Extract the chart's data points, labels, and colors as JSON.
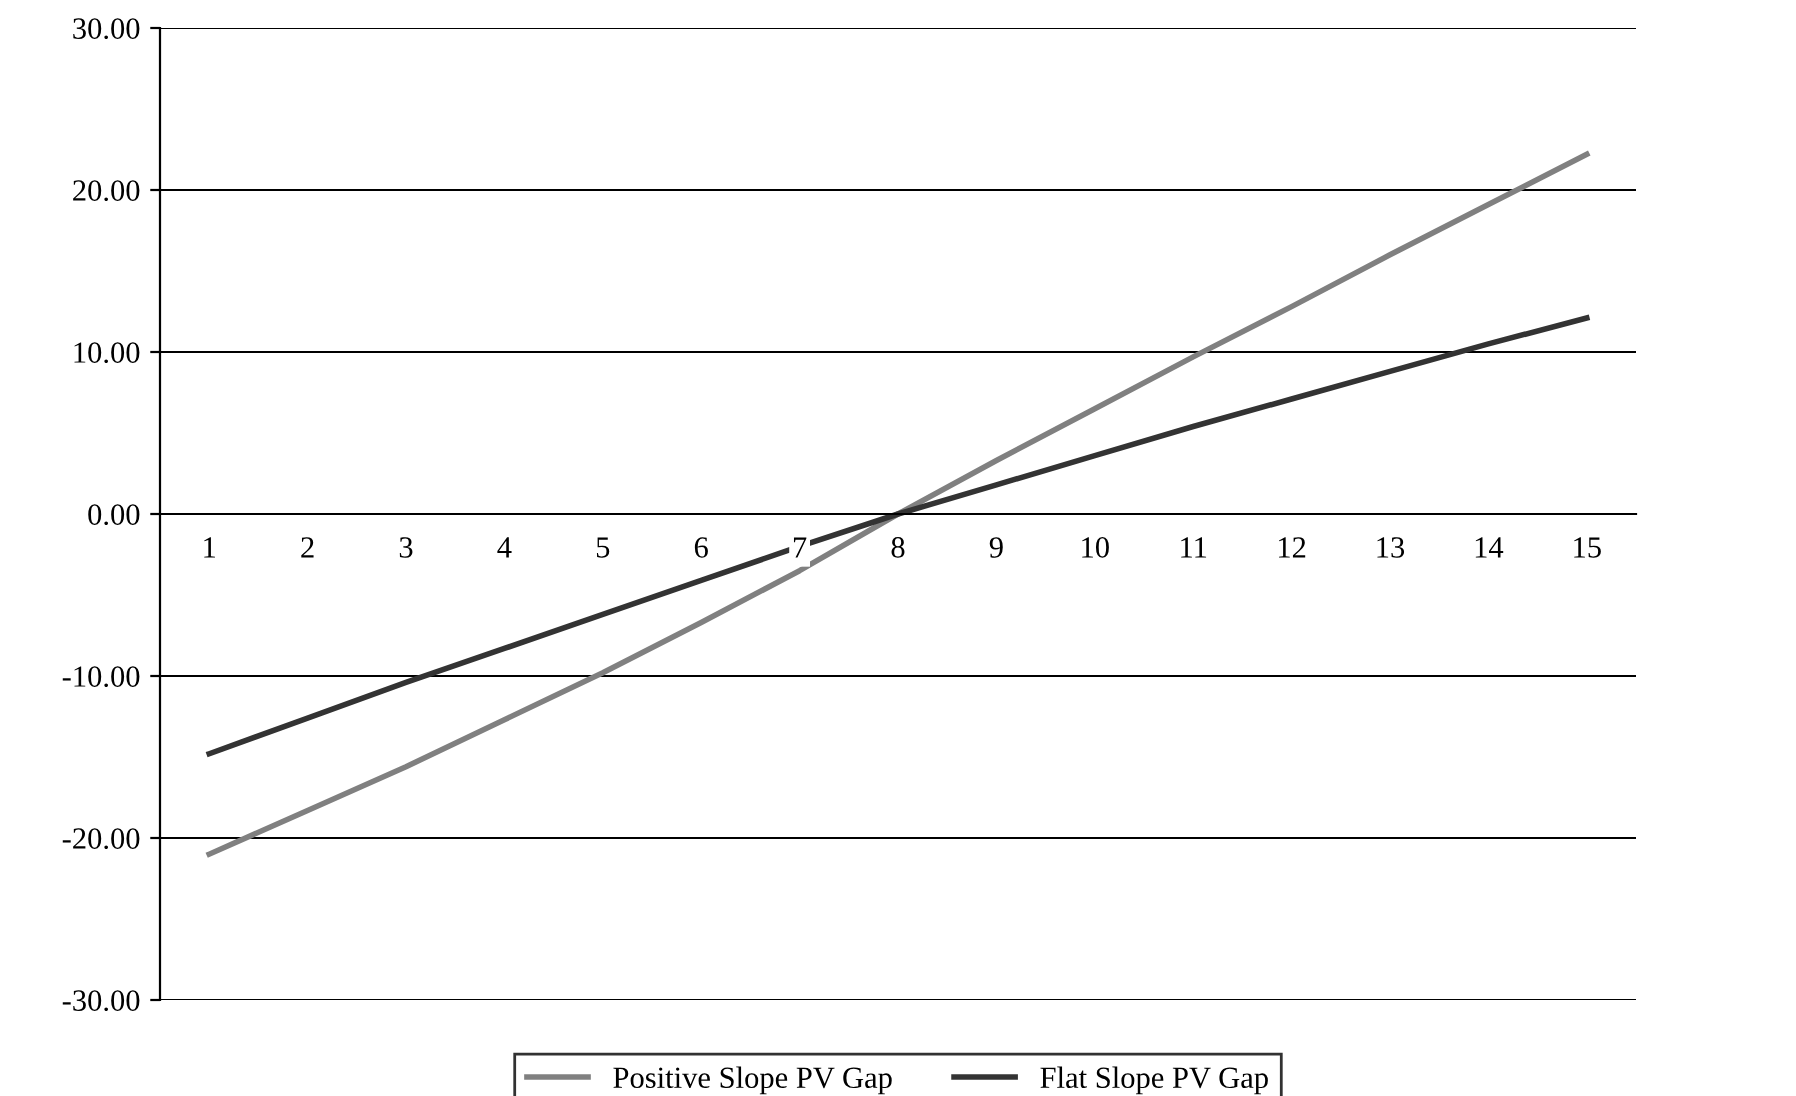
{
  "chart_data": {
    "type": "line",
    "categories": [
      "1",
      "2",
      "3",
      "4",
      "5",
      "6",
      "7",
      "8",
      "9",
      "10",
      "11",
      "12",
      "13",
      "14",
      "15"
    ],
    "series": [
      {
        "name": "Positive Slope PV Gap",
        "color": "#808080",
        "values": [
          -21.0,
          -18.3,
          -15.6,
          -12.7,
          -9.8,
          -6.7,
          -3.5,
          0.0,
          3.3,
          6.5,
          9.7,
          12.8,
          16.0,
          19.1,
          22.2
        ]
      },
      {
        "name": "Flat Slope PV Gap",
        "color": "#333333",
        "values": [
          -14.8,
          -12.6,
          -10.4,
          -8.3,
          -6.2,
          -4.1,
          -2.0,
          0.0,
          1.8,
          3.6,
          5.4,
          7.1,
          8.8,
          10.5,
          12.1
        ]
      }
    ],
    "ylim": [
      -30,
      30
    ],
    "yticks": [
      {
        "value": -30,
        "label": "-30.00"
      },
      {
        "value": -20,
        "label": "-20.00"
      },
      {
        "value": -10,
        "label": "-10.00"
      },
      {
        "value": 0,
        "label": "0.00"
      },
      {
        "value": 10,
        "label": "10.00"
      },
      {
        "value": 20,
        "label": "20.00"
      },
      {
        "value": 30,
        "label": "30.00"
      }
    ],
    "grid": "y",
    "legend": "bottom",
    "marker": "none",
    "line_style": "solid"
  }
}
